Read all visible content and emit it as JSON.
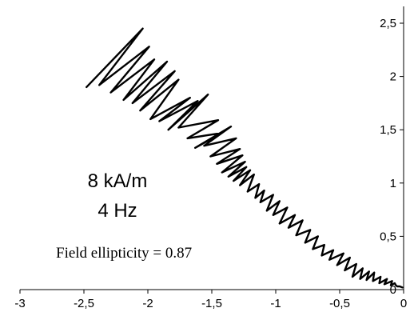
{
  "chart_data": {
    "type": "line",
    "title": "",
    "xlabel": "",
    "ylabel": "",
    "xlim": [
      -3,
      0
    ],
    "ylim": [
      0,
      2.5
    ],
    "grid": false,
    "legend": "none",
    "x_ticks": [
      -3,
      -2.5,
      -2,
      -1.5,
      -1,
      -0.5,
      0
    ],
    "x_tick_labels": [
      "-3",
      "-2,5",
      "-2",
      "-1,5",
      "-1",
      "-0,5",
      "0"
    ],
    "y_ticks": [
      0,
      0.5,
      1,
      1.5,
      2,
      2.5
    ],
    "y_tick_labels": [
      "0",
      "0,5",
      "1",
      "1,5",
      "2",
      "2,5"
    ],
    "y_axis_position": "right",
    "line_color": "#000000",
    "series": [
      {
        "x": [
          -2.48,
          -2.04,
          -2.38,
          -1.99,
          -2.29,
          -1.95,
          -2.19,
          -1.85,
          -2.12,
          -1.79,
          -2.06,
          -1.76,
          -1.98,
          -1.67,
          -1.91,
          -1.61,
          -1.84,
          -1.53,
          -1.76,
          -1.45,
          -1.69,
          -1.42,
          -1.63,
          -1.35,
          -1.56,
          -1.31,
          -1.51,
          -1.28,
          -1.46,
          -1.26,
          -1.42,
          -1.24,
          -1.37,
          -1.23,
          -1.33,
          -1.2,
          -1.28,
          -1.17,
          -1.22,
          -1.13,
          -1.16,
          -1.09,
          -1.12,
          -1.02,
          -1.07,
          -0.97,
          -1.02,
          -0.91,
          -0.97,
          -0.85,
          -0.9,
          -0.79,
          -0.84,
          -0.73,
          -0.77,
          -0.67,
          -0.71,
          -0.62,
          -0.64,
          -0.55,
          -0.58,
          -0.47,
          -0.52,
          -0.42,
          -0.46,
          -0.37,
          -0.4,
          -0.32,
          -0.34,
          -0.27,
          -0.29,
          -0.23,
          -0.24,
          -0.18,
          -0.19,
          -0.13,
          -0.15,
          -0.09,
          -0.1,
          -0.07,
          -0.06,
          -0.05,
          -0.03,
          -0.01
        ],
        "y": [
          1.9,
          2.45,
          1.92,
          2.28,
          1.85,
          2.16,
          1.78,
          2.14,
          1.75,
          2.05,
          1.68,
          1.97,
          1.6,
          1.8,
          1.58,
          1.77,
          1.5,
          1.83,
          1.52,
          1.59,
          1.42,
          1.47,
          1.33,
          1.53,
          1.35,
          1.42,
          1.25,
          1.32,
          1.18,
          1.26,
          1.1,
          1.2,
          1.06,
          1.15,
          1.02,
          1.12,
          0.98,
          1.08,
          0.92,
          0.99,
          0.86,
          0.93,
          0.82,
          0.89,
          0.74,
          0.83,
          0.7,
          0.77,
          0.62,
          0.7,
          0.58,
          0.65,
          0.51,
          0.56,
          0.44,
          0.5,
          0.38,
          0.42,
          0.32,
          0.37,
          0.28,
          0.34,
          0.23,
          0.3,
          0.18,
          0.24,
          0.12,
          0.2,
          0.1,
          0.17,
          0.09,
          0.16,
          0.08,
          0.12,
          0.06,
          0.1,
          0.05,
          0.08,
          0.04,
          0.06,
          0.04,
          0.03,
          0.03,
          0.02
        ]
      }
    ],
    "annotations": {
      "field": "8 kA/m",
      "frequency": "4 Hz",
      "ellipticity": "Field ellipticity = 0.87"
    }
  }
}
